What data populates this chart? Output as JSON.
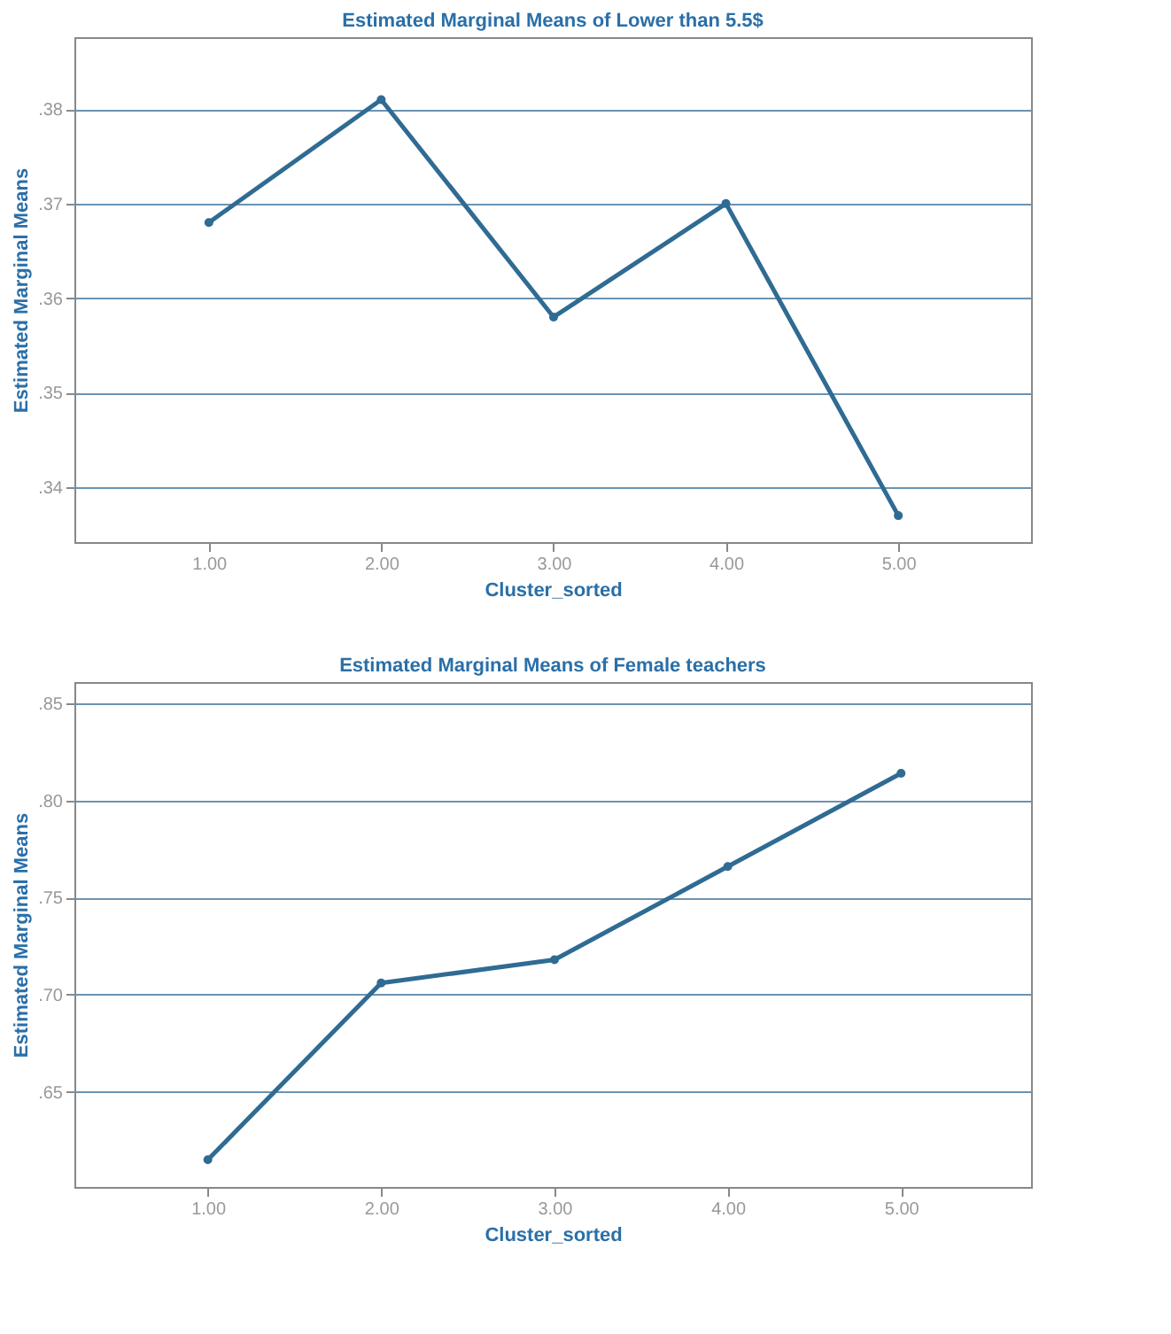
{
  "chart_data": [
    {
      "type": "line",
      "title": "Estimated Marginal Means of Lower than 5.5$",
      "xlabel": "Cluster_sorted",
      "ylabel": "Estimated Marginal Means",
      "x": [
        1,
        2,
        3,
        4,
        5
      ],
      "series": [
        {
          "color": "#2f6b93",
          "values": [
            0.368,
            0.381,
            0.358,
            0.37,
            0.337
          ]
        }
      ],
      "xlim": [
        0.22,
        5.77
      ],
      "xticks": [
        {
          "value": 1,
          "label": "1.00"
        },
        {
          "value": 2,
          "label": "2.00"
        },
        {
          "value": 3,
          "label": "3.00"
        },
        {
          "value": 4,
          "label": "4.00"
        },
        {
          "value": 5,
          "label": "5.00"
        }
      ],
      "ylim": [
        0.3342,
        0.3876
      ],
      "yticks": [
        {
          "value": 0.34,
          "label": ".34"
        },
        {
          "value": 0.35,
          "label": ".35"
        },
        {
          "value": 0.36,
          "label": ".36"
        },
        {
          "value": 0.37,
          "label": ".37"
        },
        {
          "value": 0.38,
          "label": ".38"
        }
      ],
      "grid": "y",
      "marker": "circle",
      "line_style": "solid"
    },
    {
      "type": "line",
      "title": "Estimated Marginal Means of Female teachers",
      "xlabel": "Cluster_sorted",
      "ylabel": "Estimated Marginal Means",
      "x": [
        1,
        2,
        3,
        4,
        5
      ],
      "series": [
        {
          "color": "#2f6b93",
          "values": [
            0.615,
            0.706,
            0.718,
            0.766,
            0.814
          ]
        }
      ],
      "xlim": [
        0.23,
        5.75
      ],
      "xticks": [
        {
          "value": 1,
          "label": "1.00"
        },
        {
          "value": 2,
          "label": "2.00"
        },
        {
          "value": 3,
          "label": "3.00"
        },
        {
          "value": 4,
          "label": "4.00"
        },
        {
          "value": 5,
          "label": "5.00"
        }
      ],
      "ylim": [
        0.601,
        0.861
      ],
      "yticks": [
        {
          "value": 0.65,
          "label": ".65"
        },
        {
          "value": 0.7,
          "label": ".70"
        },
        {
          "value": 0.75,
          "label": ".75"
        },
        {
          "value": 0.8,
          "label": ".80"
        },
        {
          "value": 0.85,
          "label": ".85"
        }
      ],
      "grid": "y",
      "marker": "circle",
      "line_style": "solid"
    }
  ]
}
